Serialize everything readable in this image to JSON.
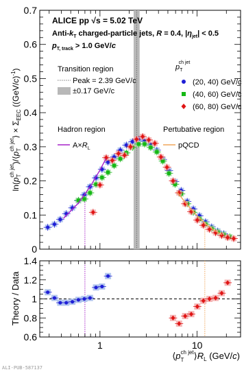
{
  "chart_data": [
    {
      "type": "scatter",
      "panel": "top",
      "collaboration": "ALICE",
      "system": "pp",
      "energy_label": "√s = 5.02 TeV",
      "jet_line": "Anti-kT charged-particle jets, R = 0.4, |ηjet| < 0.5",
      "jet_line_parts": {
        "prefix": "Anti-",
        "kt": "k",
        "kt_sub": "T",
        "mid": " charged-particle jets, ",
        "R": "R",
        "R_val": " = 0.4, |",
        "eta": "η",
        "eta_sub": "jet",
        "eta_tail": "| < 0.5"
      },
      "track_cut": "pT, track > 1.0 GeV/c",
      "track_cut_parts": {
        "p": "p",
        "sub": "T, track",
        "tail": " > 1.0 GeV/",
        "c": "c"
      },
      "xlabel": "⟨pT ch jet⟩RL (GeV/c)",
      "ylabel": "ln(pT ch jet)/⟨pT ch jet⟩ × ΣEEC ((GeV/c)⁻¹)",
      "ylabel_parts": {
        "a": "ln(",
        "b": "p",
        "c": "T",
        "d": "ch jet",
        "e": ")/⟨",
        "f": "p",
        "g": "T",
        "h": "ch jet",
        "i": "⟩ × Σ",
        "j": "EEC",
        "k": " ((GeV/",
        "l": "c",
        "m": ")",
        "n": "-1",
        "o": ")"
      },
      "xscale": "log",
      "xlim": [
        0.24,
        28
      ],
      "ylim": [
        0,
        0.7
      ],
      "yticks": [
        "0",
        "0.1",
        "0.2",
        "0.3",
        "0.4",
        "0.5",
        "0.6",
        "0.7"
      ],
      "xticks": [
        "1",
        "10"
      ],
      "legend": {
        "title": "pT ch jet",
        "title_parts": {
          "p": "p",
          "sub": "T",
          "sup": "ch jet"
        },
        "placement": "top-right",
        "entries": [
          "(20, 40) GeV/c",
          "(40, 60) GeV/c",
          "(60, 80) GeV/c"
        ]
      },
      "transition_region": {
        "title": "Transition region",
        "peak_label": "Peak = 2.39 GeV/c",
        "band_label": "±0.17 GeV/c",
        "peak": 2.39,
        "band": 0.17
      },
      "hadron_region": {
        "title": "Hadron region",
        "model_label": "A×RL",
        "model_parts": {
          "a": "A×",
          "b": "R",
          "c": "L"
        }
      },
      "perturbative_region": {
        "title": "Pertubative region",
        "model_label": "pQCD"
      },
      "series": [
        {
          "name": "(20, 40) GeV/c",
          "color": "#1f1fd6",
          "marker": "circle",
          "x": [
            0.29,
            0.34,
            0.39,
            0.45,
            0.52,
            0.6,
            0.69,
            0.79,
            0.91,
            1.05,
            1.21,
            1.4,
            1.62,
            1.87,
            2.16,
            2.5,
            2.88,
            3.33,
            3.85,
            4.44,
            5.13,
            5.93,
            6.85,
            7.91,
            9.14,
            10.56,
            12.2,
            14.1,
            16.3,
            18.8
          ],
          "y": [
            0.064,
            0.073,
            0.087,
            0.104,
            0.121,
            0.142,
            0.159,
            0.183,
            0.209,
            0.234,
            0.255,
            0.27,
            0.29,
            0.305,
            0.315,
            0.322,
            0.317,
            0.305,
            0.29,
            0.263,
            0.23,
            0.198,
            0.172,
            0.14,
            0.118,
            0.098,
            0.08,
            0.065,
            0.053,
            0.045
          ]
        },
        {
          "name": "(40, 60) GeV/c",
          "color": "#15b815",
          "marker": "square",
          "x": [
            0.6,
            0.69,
            0.79,
            0.91,
            1.05,
            1.21,
            1.4,
            1.62,
            1.87,
            2.16,
            2.5,
            2.88,
            3.33,
            3.85,
            4.44,
            5.13,
            5.93,
            6.85,
            7.91,
            9.14,
            10.56,
            12.2,
            14.1,
            16.3,
            18.8,
            21.7
          ],
          "y": [
            0.143,
            0.147,
            0.165,
            0.19,
            0.21,
            0.225,
            0.245,
            0.265,
            0.282,
            0.298,
            0.308,
            0.308,
            0.298,
            0.285,
            0.258,
            0.222,
            0.19,
            0.162,
            0.133,
            0.108,
            0.088,
            0.073,
            0.06,
            0.05,
            0.042,
            0.036
          ]
        },
        {
          "name": "(60, 80) GeV/c",
          "color": "#e01515",
          "marker": "diamond",
          "x": [
            0.85,
            1.0,
            1.16,
            1.34,
            1.55,
            1.79,
            2.06,
            2.38,
            2.75,
            3.18,
            3.67,
            4.24,
            4.89,
            5.65,
            6.52,
            7.53,
            8.7,
            10.04,
            11.6,
            13.4,
            15.5,
            17.9,
            20.6,
            23.8
          ],
          "y": [
            0.108,
            0.188,
            0.268,
            0.26,
            0.28,
            0.275,
            0.3,
            0.322,
            0.33,
            0.32,
            0.31,
            0.27,
            0.24,
            0.2,
            0.165,
            0.133,
            0.11,
            0.085,
            0.07,
            0.058,
            0.048,
            0.04,
            0.034,
            0.031
          ]
        }
      ],
      "model_curves": {
        "hadron_AxRL": {
          "color": "#a620c8",
          "x": [
            0.42,
            0.6,
            0.8,
            1.0,
            1.15
          ],
          "y": [
            0.09,
            0.135,
            0.185,
            0.232,
            0.265
          ]
        },
        "pqcd": {
          "color": "#f0a55a",
          "x": [
            6.2,
            8.0,
            10.0,
            12.5,
            15.0,
            18.0
          ],
          "y": [
            0.168,
            0.128,
            0.098,
            0.072,
            0.055,
            0.042
          ]
        }
      },
      "vertical_markers": {
        "hadron_x": 0.7,
        "pqcd_x": 12.0
      }
    },
    {
      "type": "scatter",
      "panel": "bottom",
      "ylabel": "Theory / Data",
      "xscale": "log",
      "xlim": [
        0.24,
        28
      ],
      "ylim": [
        0.6,
        1.4
      ],
      "yticks": [
        "0.6",
        "0.8",
        "1",
        "1.2",
        "1.4"
      ],
      "reference_line": 1.0,
      "series": [
        {
          "name": "hadron ratio (20, 40) GeV/c",
          "color": "#1f1fd6",
          "x": [
            0.29,
            0.34,
            0.39,
            0.45,
            0.52,
            0.6,
            0.69,
            0.79,
            0.91,
            1.05,
            1.21
          ],
          "y": [
            1.07,
            1.01,
            0.96,
            0.96,
            0.97,
            0.99,
            1.0,
            1.01,
            1.12,
            1.13,
            1.24
          ]
        },
        {
          "name": "pQCD ratio (60, 80) GeV/c",
          "color": "#e01515",
          "x": [
            5.65,
            6.52,
            7.53,
            8.7,
            10.04,
            11.6,
            13.4,
            15.5,
            17.9,
            20.6
          ],
          "y": [
            0.8,
            0.74,
            0.82,
            0.84,
            0.92,
            0.98,
            1.0,
            1.01,
            1.06,
            1.17
          ]
        }
      ]
    }
  ],
  "footer_id": "ALI-PUB-587137"
}
